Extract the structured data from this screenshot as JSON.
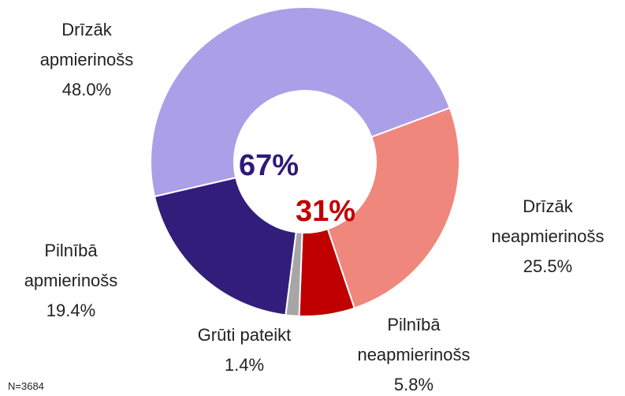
{
  "chart_data": {
    "type": "donut",
    "categories": [
      "Drīzāk apmierinošs",
      "Drīzāk neapmierinošs",
      "Pilnībā neapmierinošs",
      "Grūti pateikt",
      "Pilnībā apmierinošs"
    ],
    "values": [
      48.0,
      25.5,
      5.8,
      1.4,
      19.4
    ],
    "value_labels": [
      "48.0%",
      "25.5%",
      "5.8%",
      "1.4%",
      "19.4%"
    ],
    "colors": [
      "#ab9fe8",
      "#f0877d",
      "#c00000",
      "#a6a6a6",
      "#321e7a"
    ],
    "annotations": [
      {
        "text": "67%",
        "color": "#2e1a7a"
      },
      {
        "text": "31%",
        "color": "#c00000"
      }
    ],
    "footnote": "N=3684"
  }
}
